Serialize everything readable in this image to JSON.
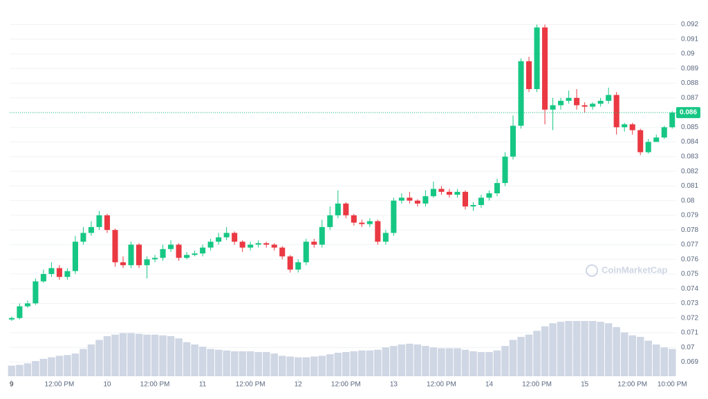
{
  "chart_data": {
    "type": "candlestick",
    "watermark": "CoinMarketCap",
    "up_color": "#16c784",
    "down_color": "#ea3943",
    "volume_color": "#cfd6e4",
    "grid": true,
    "last_price": 0.086,
    "last_price_label": "0.086",
    "x": [
      0,
      2,
      4,
      6,
      8,
      10,
      12,
      14,
      16,
      18,
      20,
      22,
      24,
      26,
      28,
      30,
      32,
      34,
      36,
      38,
      40,
      42,
      44,
      46,
      48,
      50,
      52,
      54,
      56,
      58,
      60,
      62,
      64,
      66,
      68,
      70,
      72,
      74,
      76,
      78,
      80,
      82,
      84,
      86,
      88,
      90,
      92,
      94,
      96,
      98,
      100,
      102,
      104,
      106,
      108,
      110,
      112,
      114,
      116,
      118,
      120,
      122,
      124,
      126,
      128,
      130,
      132,
      134,
      136,
      138,
      140,
      142,
      144,
      146,
      148,
      150,
      152,
      154,
      156,
      158,
      160,
      162,
      164,
      166
    ],
    "open": [
      0.0719,
      0.072,
      0.0728,
      0.073,
      0.0745,
      0.075,
      0.0754,
      0.0748,
      0.0752,
      0.0772,
      0.0778,
      0.0782,
      0.079,
      0.078,
      0.0758,
      0.0756,
      0.077,
      0.0756,
      0.076,
      0.0761,
      0.0767,
      0.077,
      0.0761,
      0.0763,
      0.0764,
      0.0768,
      0.0772,
      0.0775,
      0.0778,
      0.0772,
      0.0768,
      0.077,
      0.0771,
      0.077,
      0.0768,
      0.0762,
      0.0753,
      0.0758,
      0.0772,
      0.077,
      0.0782,
      0.079,
      0.0798,
      0.079,
      0.0785,
      0.0784,
      0.0786,
      0.0772,
      0.0778,
      0.08,
      0.0802,
      0.08,
      0.0798,
      0.0803,
      0.0808,
      0.0806,
      0.0804,
      0.0806,
      0.0796,
      0.0797,
      0.0802,
      0.0805,
      0.0812,
      0.083,
      0.0851,
      0.0895,
      0.0876,
      0.0918,
      0.0862,
      0.0865,
      0.0868,
      0.087,
      0.0865,
      0.0864,
      0.0866,
      0.0868,
      0.0872,
      0.085,
      0.0852,
      0.0848,
      0.0833,
      0.084,
      0.0843,
      0.085
    ],
    "high": [
      0.0721,
      0.073,
      0.0732,
      0.0747,
      0.0753,
      0.0758,
      0.0756,
      0.0754,
      0.0776,
      0.0782,
      0.0786,
      0.0793,
      0.0791,
      0.0781,
      0.0762,
      0.0772,
      0.0771,
      0.0762,
      0.0763,
      0.077,
      0.0773,
      0.0771,
      0.0765,
      0.0766,
      0.077,
      0.0774,
      0.0778,
      0.0782,
      0.0779,
      0.0773,
      0.0772,
      0.0773,
      0.0772,
      0.0771,
      0.0769,
      0.0763,
      0.076,
      0.0774,
      0.0774,
      0.0787,
      0.0796,
      0.0807,
      0.0799,
      0.0791,
      0.0787,
      0.0788,
      0.0787,
      0.078,
      0.0802,
      0.0805,
      0.0806,
      0.0801,
      0.0807,
      0.0813,
      0.081,
      0.0808,
      0.0808,
      0.0807,
      0.0799,
      0.0804,
      0.0807,
      0.0815,
      0.0833,
      0.0858,
      0.0897,
      0.0898,
      0.092,
      0.092,
      0.087,
      0.087,
      0.0875,
      0.0876,
      0.0867,
      0.0867,
      0.087,
      0.0877,
      0.0874,
      0.0853,
      0.0853,
      0.0849,
      0.0842,
      0.0845,
      0.0851,
      0.0861
    ],
    "low": [
      0.0718,
      0.0719,
      0.0727,
      0.0729,
      0.0744,
      0.0748,
      0.0746,
      0.0746,
      0.075,
      0.077,
      0.0776,
      0.078,
      0.0778,
      0.0755,
      0.0754,
      0.0754,
      0.0754,
      0.0747,
      0.0758,
      0.0759,
      0.0765,
      0.0759,
      0.076,
      0.0762,
      0.0762,
      0.0766,
      0.077,
      0.0773,
      0.077,
      0.0765,
      0.0766,
      0.0768,
      0.0768,
      0.0766,
      0.076,
      0.0751,
      0.0751,
      0.0756,
      0.0768,
      0.0768,
      0.078,
      0.0788,
      0.0788,
      0.0783,
      0.0782,
      0.0782,
      0.077,
      0.077,
      0.0776,
      0.0798,
      0.0798,
      0.0796,
      0.0796,
      0.0802,
      0.0804,
      0.0802,
      0.0802,
      0.0794,
      0.0793,
      0.0795,
      0.08,
      0.0803,
      0.081,
      0.0828,
      0.0849,
      0.0874,
      0.0874,
      0.0852,
      0.0848,
      0.0862,
      0.0866,
      0.0862,
      0.086,
      0.0862,
      0.0864,
      0.0866,
      0.0845,
      0.0847,
      0.0845,
      0.0831,
      0.0832,
      0.084,
      0.0842,
      0.0849
    ],
    "close": [
      0.072,
      0.0728,
      0.073,
      0.0745,
      0.075,
      0.0754,
      0.0748,
      0.0752,
      0.0772,
      0.0778,
      0.0782,
      0.079,
      0.078,
      0.0758,
      0.0756,
      0.077,
      0.0756,
      0.076,
      0.0761,
      0.0767,
      0.077,
      0.0761,
      0.0763,
      0.0764,
      0.0768,
      0.0772,
      0.0775,
      0.0778,
      0.0772,
      0.0768,
      0.077,
      0.0771,
      0.077,
      0.0768,
      0.0762,
      0.0753,
      0.0758,
      0.0772,
      0.077,
      0.0782,
      0.079,
      0.0798,
      0.079,
      0.0785,
      0.0784,
      0.0786,
      0.0772,
      0.0778,
      0.08,
      0.0802,
      0.08,
      0.0798,
      0.0803,
      0.0808,
      0.0806,
      0.0804,
      0.0806,
      0.0796,
      0.0797,
      0.0802,
      0.0805,
      0.0812,
      0.083,
      0.0851,
      0.0895,
      0.0876,
      0.0918,
      0.0862,
      0.0865,
      0.0868,
      0.087,
      0.0865,
      0.0864,
      0.0866,
      0.0868,
      0.0872,
      0.085,
      0.0852,
      0.0848,
      0.0833,
      0.084,
      0.0843,
      0.085,
      0.086
    ],
    "volume": [
      14,
      15,
      17,
      20,
      23,
      25,
      27,
      28,
      30,
      36,
      42,
      48,
      53,
      55,
      57,
      57,
      56,
      55,
      55,
      54,
      53,
      50,
      45,
      42,
      39,
      36,
      35,
      34,
      33,
      33,
      33,
      32,
      32,
      30,
      27,
      26,
      25,
      25,
      26,
      27,
      29,
      31,
      32,
      33,
      34,
      34,
      35,
      38,
      40,
      42,
      43,
      42,
      40,
      38,
      37,
      37,
      37,
      35,
      33,
      32,
      32,
      34,
      40,
      48,
      52,
      55,
      60,
      66,
      70,
      72,
      73,
      73,
      73,
      73,
      72,
      70,
      65,
      58,
      54,
      52,
      47,
      42,
      38,
      36
    ],
    "xlim": [
      -0.5,
      167
    ],
    "xticks": [
      {
        "value": 0,
        "label": "9"
      },
      {
        "value": 12,
        "label": "12:00 PM"
      },
      {
        "value": 24,
        "label": "10"
      },
      {
        "value": 36,
        "label": "12:00 PM"
      },
      {
        "value": 48,
        "label": "11"
      },
      {
        "value": 60,
        "label": "12:00 PM"
      },
      {
        "value": 72,
        "label": "12"
      },
      {
        "value": 84,
        "label": "12:00 PM"
      },
      {
        "value": 96,
        "label": "13"
      },
      {
        "value": 108,
        "label": "12:00 PM"
      },
      {
        "value": 120,
        "label": "14"
      },
      {
        "value": 132,
        "label": "12:00 PM"
      },
      {
        "value": 144,
        "label": "15"
      },
      {
        "value": 156,
        "label": "12:00 PM"
      },
      {
        "value": 166,
        "label": "10:00 PM"
      }
    ],
    "ylim": [
      0.0678,
      0.0932
    ],
    "yticks": [
      0.069,
      0.07,
      0.071,
      0.072,
      0.073,
      0.074,
      0.075,
      0.076,
      0.077,
      0.078,
      0.079,
      0.08,
      0.081,
      0.082,
      0.083,
      0.084,
      0.085,
      0.086,
      0.087,
      0.088,
      0.089,
      0.09,
      0.091,
      0.092
    ]
  }
}
